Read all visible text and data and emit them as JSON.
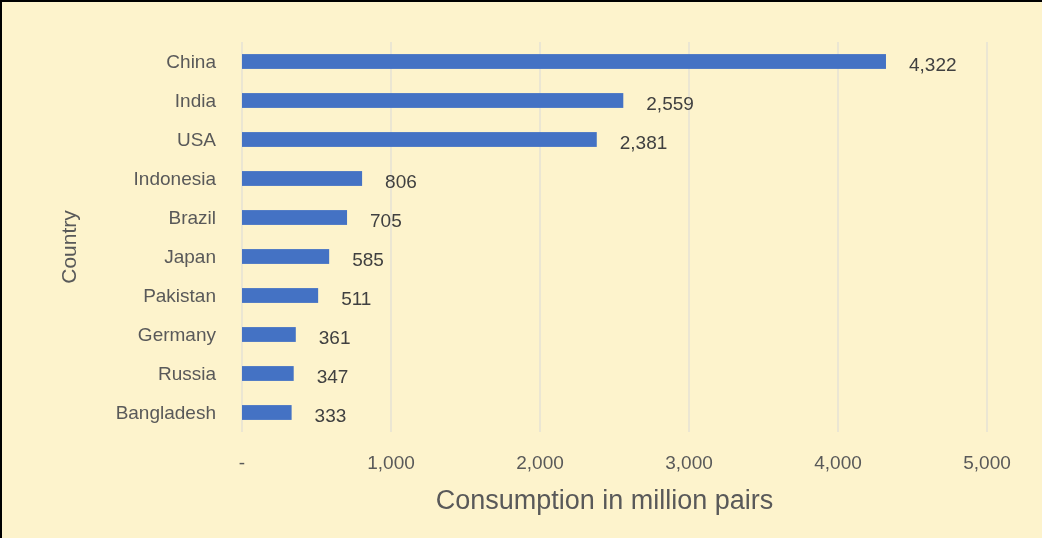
{
  "chart_data": {
    "type": "bar",
    "orientation": "horizontal",
    "xlabel": "Consumption in million pairs",
    "ylabel": "Country",
    "categories": [
      "China",
      "India",
      "USA",
      "Indonesia",
      "Brazil",
      "Japan",
      "Pakistan",
      "Germany",
      "Russia",
      "Bangladesh"
    ],
    "values": [
      4322,
      2559,
      2381,
      806,
      705,
      585,
      511,
      361,
      347,
      333
    ],
    "value_labels": [
      "4,322",
      "2,559",
      "2,381",
      "806",
      "705",
      "585",
      "511",
      "361",
      "347",
      "333"
    ],
    "color": "#4472c4",
    "xlim": [
      0,
      5000
    ],
    "xticks": [
      {
        "value": 0,
        "label": "-"
      },
      {
        "value": 1000,
        "label": "1,000"
      },
      {
        "value": 2000,
        "label": "2,000"
      },
      {
        "value": 3000,
        "label": "3,000"
      },
      {
        "value": 4000,
        "label": "4,000"
      },
      {
        "value": 5000,
        "label": "5,000"
      }
    ],
    "grid": "x"
  }
}
